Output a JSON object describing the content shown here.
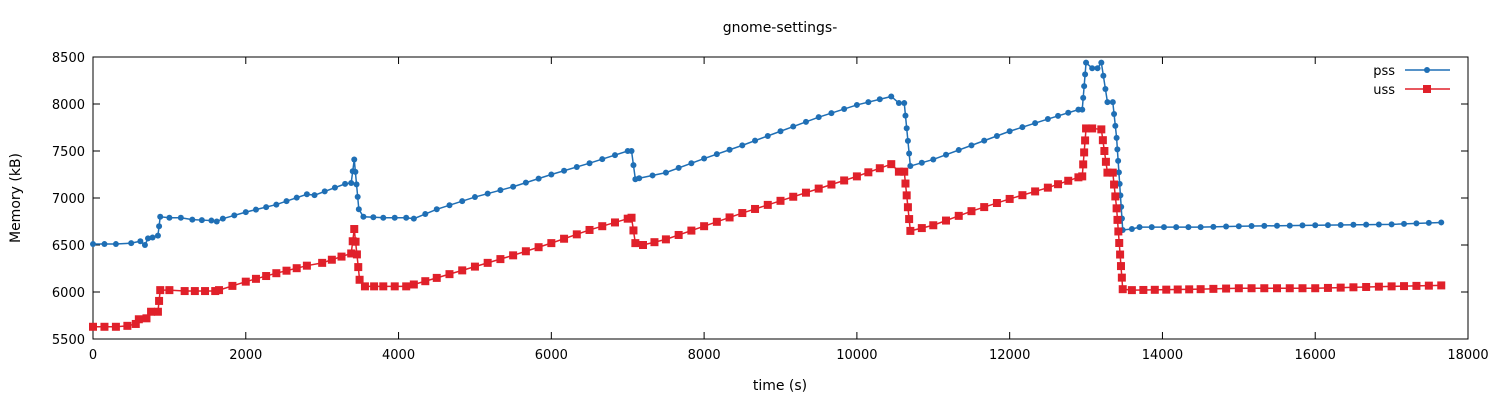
{
  "chart_data": {
    "type": "line",
    "title": "gnome-settings-",
    "xlabel": "time (s)",
    "ylabel": "Memory (kB)",
    "xlim": [
      0,
      18000
    ],
    "ylim": [
      5500,
      8500
    ],
    "xticks": [
      0,
      2000,
      4000,
      6000,
      8000,
      10000,
      12000,
      14000,
      16000,
      18000
    ],
    "yticks": [
      5500,
      6000,
      6500,
      7000,
      7500,
      8000,
      8500
    ],
    "legend_position": "top-right",
    "grid": false,
    "series": [
      {
        "name": "pss",
        "color": "#1f6fb5",
        "marker": "circle",
        "points": [
          [
            0,
            6510
          ],
          [
            300,
            6510
          ],
          [
            500,
            6520
          ],
          [
            620,
            6540
          ],
          [
            680,
            6500
          ],
          [
            720,
            6570
          ],
          [
            780,
            6580
          ],
          [
            850,
            6600
          ],
          [
            880,
            6800
          ],
          [
            1000,
            6790
          ],
          [
            1150,
            6790
          ],
          [
            1300,
            6770
          ],
          [
            1550,
            6760
          ],
          [
            1620,
            6750
          ],
          [
            1700,
            6780
          ],
          [
            2000,
            6850
          ],
          [
            2400,
            6930
          ],
          [
            2800,
            7040
          ],
          [
            2900,
            7030
          ],
          [
            3300,
            7150
          ],
          [
            3380,
            7160
          ],
          [
            3420,
            7410
          ],
          [
            3480,
            6880
          ],
          [
            3540,
            6800
          ],
          [
            3800,
            6790
          ],
          [
            4100,
            6790
          ],
          [
            4200,
            6780
          ],
          [
            4500,
            6880
          ],
          [
            5000,
            7010
          ],
          [
            5500,
            7120
          ],
          [
            6000,
            7250
          ],
          [
            6500,
            7370
          ],
          [
            7000,
            7500
          ],
          [
            7050,
            7500
          ],
          [
            7100,
            7200
          ],
          [
            7150,
            7210
          ],
          [
            7500,
            7270
          ],
          [
            8000,
            7420
          ],
          [
            8500,
            7560
          ],
          [
            9000,
            7710
          ],
          [
            9500,
            7860
          ],
          [
            10000,
            7990
          ],
          [
            10450,
            8080
          ],
          [
            10550,
            8010
          ],
          [
            10620,
            8010
          ],
          [
            10700,
            7340
          ],
          [
            11000,
            7410
          ],
          [
            11500,
            7560
          ],
          [
            12000,
            7710
          ],
          [
            12500,
            7840
          ],
          [
            12900,
            7940
          ],
          [
            12950,
            7940
          ],
          [
            13000,
            8440
          ],
          [
            13080,
            8380
          ],
          [
            13150,
            8380
          ],
          [
            13200,
            8440
          ],
          [
            13280,
            8020
          ],
          [
            13350,
            8020
          ],
          [
            13400,
            7640
          ],
          [
            13480,
            6660
          ],
          [
            13600,
            6670
          ],
          [
            13700,
            6690
          ],
          [
            14500,
            6690
          ],
          [
            15000,
            6700
          ],
          [
            16000,
            6710
          ],
          [
            17000,
            6720
          ],
          [
            17650,
            6740
          ]
        ]
      },
      {
        "name": "uss",
        "color": "#e0202a",
        "marker": "square",
        "points": [
          [
            0,
            5630
          ],
          [
            300,
            5630
          ],
          [
            450,
            5640
          ],
          [
            560,
            5660
          ],
          [
            600,
            5710
          ],
          [
            700,
            5720
          ],
          [
            760,
            5790
          ],
          [
            850,
            5790
          ],
          [
            880,
            6020
          ],
          [
            1000,
            6020
          ],
          [
            1200,
            6010
          ],
          [
            1600,
            6010
          ],
          [
            1650,
            6020
          ],
          [
            2000,
            6110
          ],
          [
            2400,
            6200
          ],
          [
            2800,
            6280
          ],
          [
            3000,
            6310
          ],
          [
            3380,
            6410
          ],
          [
            3420,
            6670
          ],
          [
            3490,
            6130
          ],
          [
            3560,
            6060
          ],
          [
            3800,
            6060
          ],
          [
            4100,
            6060
          ],
          [
            4200,
            6080
          ],
          [
            4500,
            6150
          ],
          [
            5000,
            6270
          ],
          [
            5500,
            6390
          ],
          [
            6000,
            6520
          ],
          [
            6500,
            6660
          ],
          [
            7000,
            6780
          ],
          [
            7050,
            6790
          ],
          [
            7100,
            6520
          ],
          [
            7200,
            6500
          ],
          [
            7500,
            6560
          ],
          [
            8000,
            6700
          ],
          [
            8500,
            6840
          ],
          [
            9000,
            6970
          ],
          [
            9500,
            7100
          ],
          [
            10000,
            7230
          ],
          [
            10450,
            7360
          ],
          [
            10550,
            7280
          ],
          [
            10620,
            7280
          ],
          [
            10700,
            6650
          ],
          [
            11000,
            6710
          ],
          [
            11500,
            6860
          ],
          [
            12000,
            6990
          ],
          [
            12500,
            7110
          ],
          [
            12900,
            7220
          ],
          [
            12950,
            7230
          ],
          [
            13000,
            7740
          ],
          [
            13080,
            7740
          ],
          [
            13200,
            7730
          ],
          [
            13280,
            7270
          ],
          [
            13350,
            7270
          ],
          [
            13400,
            6890
          ],
          [
            13480,
            6030
          ],
          [
            13600,
            6020
          ],
          [
            14500,
            6030
          ],
          [
            15000,
            6040
          ],
          [
            16000,
            6040
          ],
          [
            17000,
            6060
          ],
          [
            17650,
            6070
          ]
        ]
      }
    ]
  }
}
